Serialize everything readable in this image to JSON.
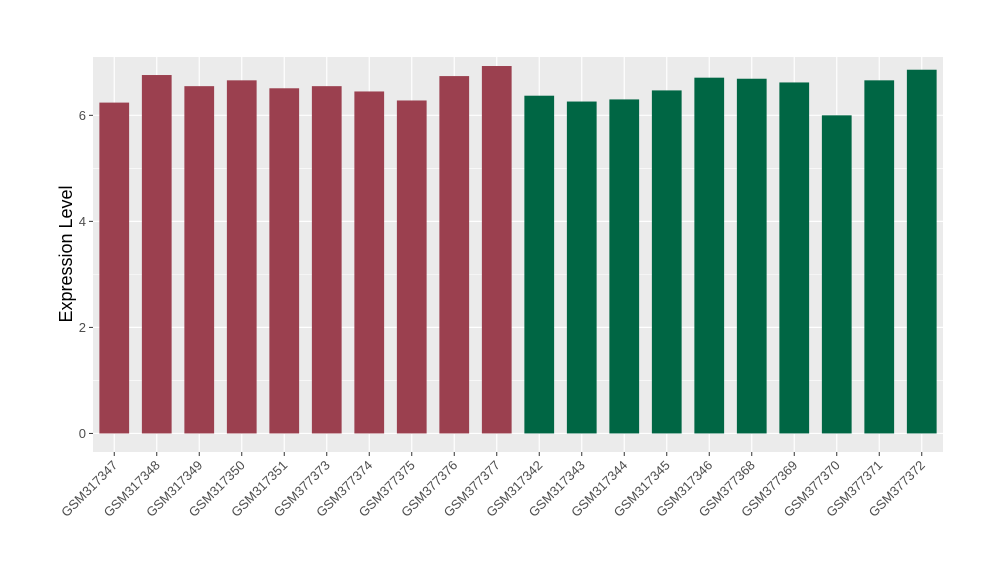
{
  "chart_data": {
    "type": "bar",
    "title": "",
    "xlabel": "",
    "ylabel": "Expression Level",
    "ylim": [
      -0.35,
      7.1
    ],
    "yticks": [
      0,
      2,
      4,
      6
    ],
    "ytick_labels": [
      "0",
      "2",
      "4",
      "6"
    ],
    "grid": true,
    "legend": "none",
    "panel_background": "#ebebeb",
    "grid_color": "#ffffff",
    "categories": [
      "GSM317347",
      "GSM317348",
      "GSM317349",
      "GSM317350",
      "GSM317351",
      "GSM377373",
      "GSM377374",
      "GSM377375",
      "GSM377376",
      "GSM377377",
      "GSM317342",
      "GSM317343",
      "GSM317344",
      "GSM317345",
      "GSM317346",
      "GSM377368",
      "GSM377369",
      "GSM377370",
      "GSM377371",
      "GSM377372"
    ],
    "values": [
      6.24,
      6.76,
      6.55,
      6.66,
      6.51,
      6.55,
      6.45,
      6.28,
      6.74,
      6.93,
      6.37,
      6.26,
      6.3,
      6.47,
      6.71,
      6.69,
      6.62,
      6.0,
      6.66,
      6.86
    ],
    "bar_colors": [
      "#9b404f",
      "#9b404f",
      "#9b404f",
      "#9b404f",
      "#9b404f",
      "#9b404f",
      "#9b404f",
      "#9b404f",
      "#9b404f",
      "#9b404f",
      "#006644",
      "#006644",
      "#006644",
      "#006644",
      "#006644",
      "#006644",
      "#006644",
      "#006644",
      "#006644",
      "#006644"
    ]
  }
}
